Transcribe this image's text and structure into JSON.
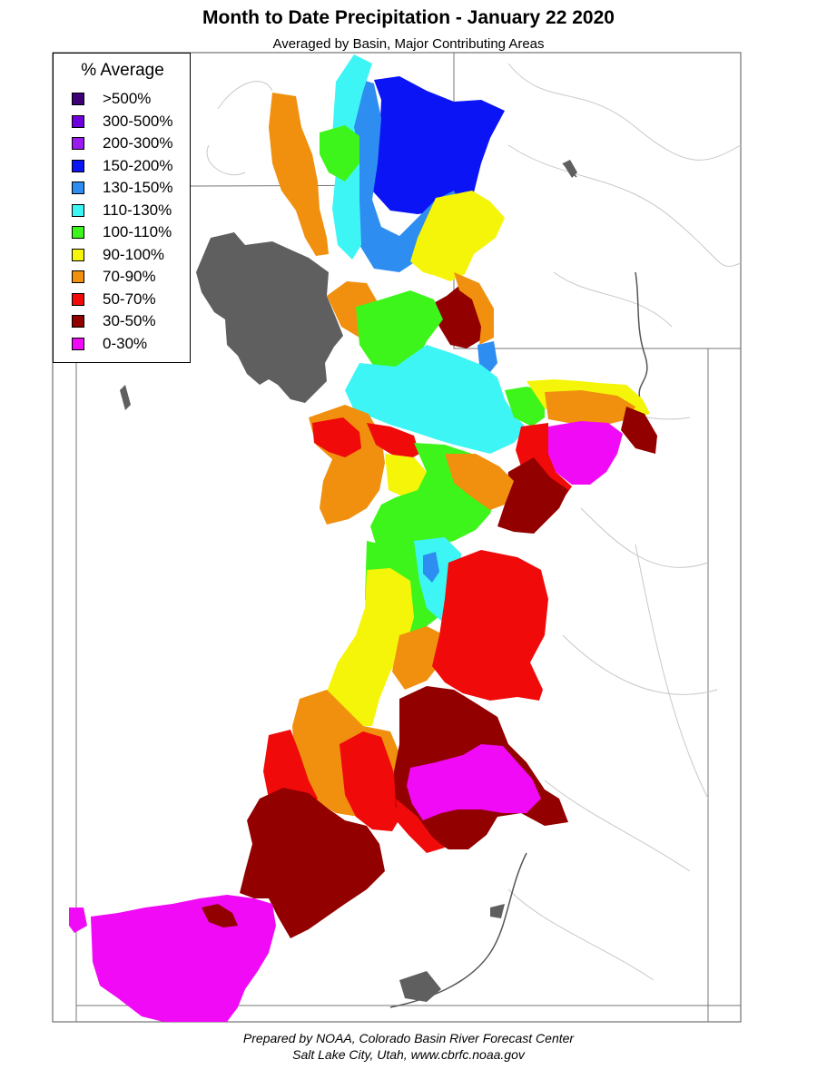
{
  "title": "Month to Date Precipitation - January 22 2020",
  "subtitle": "Averaged by Basin, Major Contributing Areas",
  "legend": {
    "title": "% Average",
    "items": [
      {
        "label": ">500%",
        "color": "#3d0075"
      },
      {
        "label": "300-500%",
        "color": "#6f00dd"
      },
      {
        "label": "200-300%",
        "color": "#9a1bf0"
      },
      {
        "label": "150-200%",
        "color": "#0a14f5"
      },
      {
        "label": "130-150%",
        "color": "#2e8df0"
      },
      {
        "label": "110-130%",
        "color": "#3ef5f5"
      },
      {
        "label": "100-110%",
        "color": "#3df51a"
      },
      {
        "label": "90-100%",
        "color": "#f5f50a"
      },
      {
        "label": "70-90%",
        "color": "#f0900e"
      },
      {
        "label": "50-70%",
        "color": "#f00a0a"
      },
      {
        "label": "30-50%",
        "color": "#920000"
      },
      {
        "label": "0-30%",
        "color": "#f00af5"
      }
    ]
  },
  "lake_color": "#5f5f5f",
  "credit": {
    "line1": "Prepared by NOAA, Colorado Basin River Forecast Center",
    "line2": "Salt Lake City, Utah, www.cbrfc.noaa.gov"
  }
}
